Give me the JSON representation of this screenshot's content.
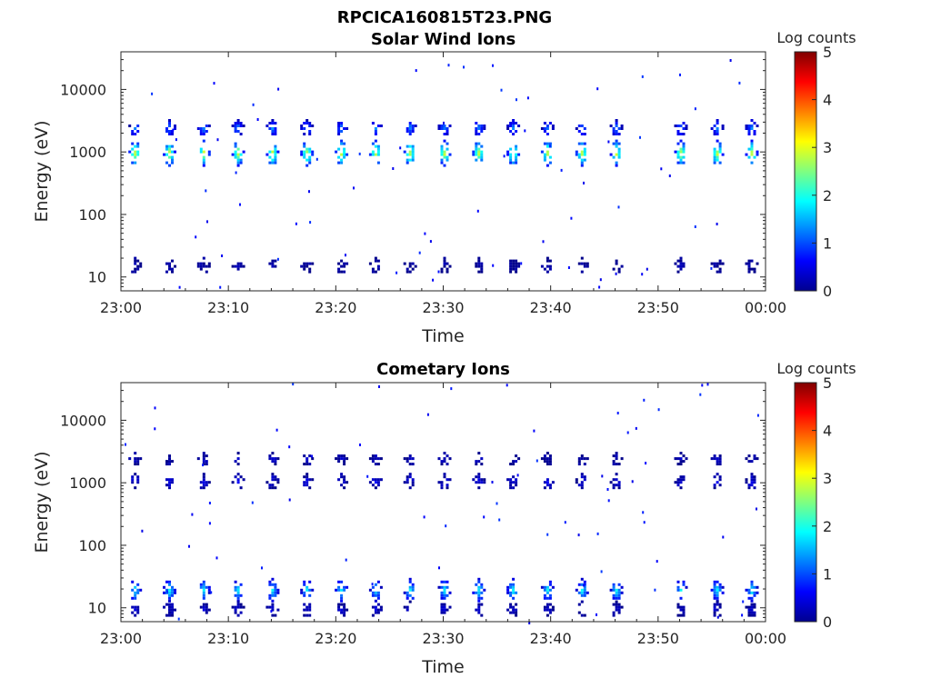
{
  "figure": {
    "title": "RPCICA160815T23.PNG"
  },
  "colorbar_ticks": [
    "0",
    "1",
    "2",
    "3",
    "4",
    "5"
  ],
  "chart_data": [
    {
      "type": "heatmap",
      "title": "Solar Wind Ions",
      "xlabel": "Time",
      "ylabel": "Energy (eV)",
      "x_ticks": [
        "23:00",
        "23:10",
        "23:20",
        "23:30",
        "23:40",
        "23:50",
        "00:00"
      ],
      "x_range_minutes": [
        0,
        60
      ],
      "y_scale": "log",
      "y_ticks": [
        "10",
        "100",
        "1000",
        "10000"
      ],
      "y_tick_values": [
        10,
        100,
        1000,
        10000
      ],
      "y_range": [
        6,
        40000
      ],
      "colorbar_label": "Log counts",
      "colorbar_range": [
        0,
        5
      ],
      "colormap": "jet",
      "sweep_minutes": [
        1.2,
        4.4,
        7.6,
        10.8,
        14.0,
        17.2,
        20.4,
        23.6,
        26.8,
        30.0,
        33.2,
        36.4,
        39.6,
        42.8,
        46.0,
        52.0,
        55.4,
        58.6
      ],
      "bands": [
        {
          "energy": 1000,
          "spread": 0.14,
          "peak": 3.0
        },
        {
          "energy": 2500,
          "spread": 0.07,
          "peak": 1.3
        },
        {
          "energy": 16,
          "spread": 0.06,
          "peak": 0.2
        }
      ]
    },
    {
      "type": "heatmap",
      "title": "Cometary Ions",
      "xlabel": "Time",
      "ylabel": "Energy (eV)",
      "x_ticks": [
        "23:00",
        "23:10",
        "23:20",
        "23:30",
        "23:40",
        "23:50",
        "00:00"
      ],
      "x_range_minutes": [
        0,
        60
      ],
      "y_scale": "log",
      "y_ticks": [
        "10",
        "100",
        "1000",
        "10000"
      ],
      "y_tick_values": [
        10,
        100,
        1000,
        10000
      ],
      "y_range": [
        6,
        40000
      ],
      "colorbar_label": "Log counts",
      "colorbar_range": [
        0,
        5
      ],
      "colormap": "jet",
      "sweep_minutes": [
        1.2,
        4.4,
        7.6,
        10.8,
        14.0,
        17.2,
        20.4,
        23.6,
        26.8,
        30.0,
        33.2,
        36.4,
        39.6,
        42.8,
        46.0,
        52.0,
        55.4,
        58.6
      ],
      "bands": [
        {
          "energy": 1100,
          "spread": 0.06,
          "peak": 0.5
        },
        {
          "energy": 2500,
          "spread": 0.04,
          "peak": 0.3
        },
        {
          "energy": 20,
          "spread": 0.12,
          "peak": 1.9
        },
        {
          "energy": 10,
          "spread": 0.06,
          "peak": 0.4
        }
      ]
    }
  ]
}
